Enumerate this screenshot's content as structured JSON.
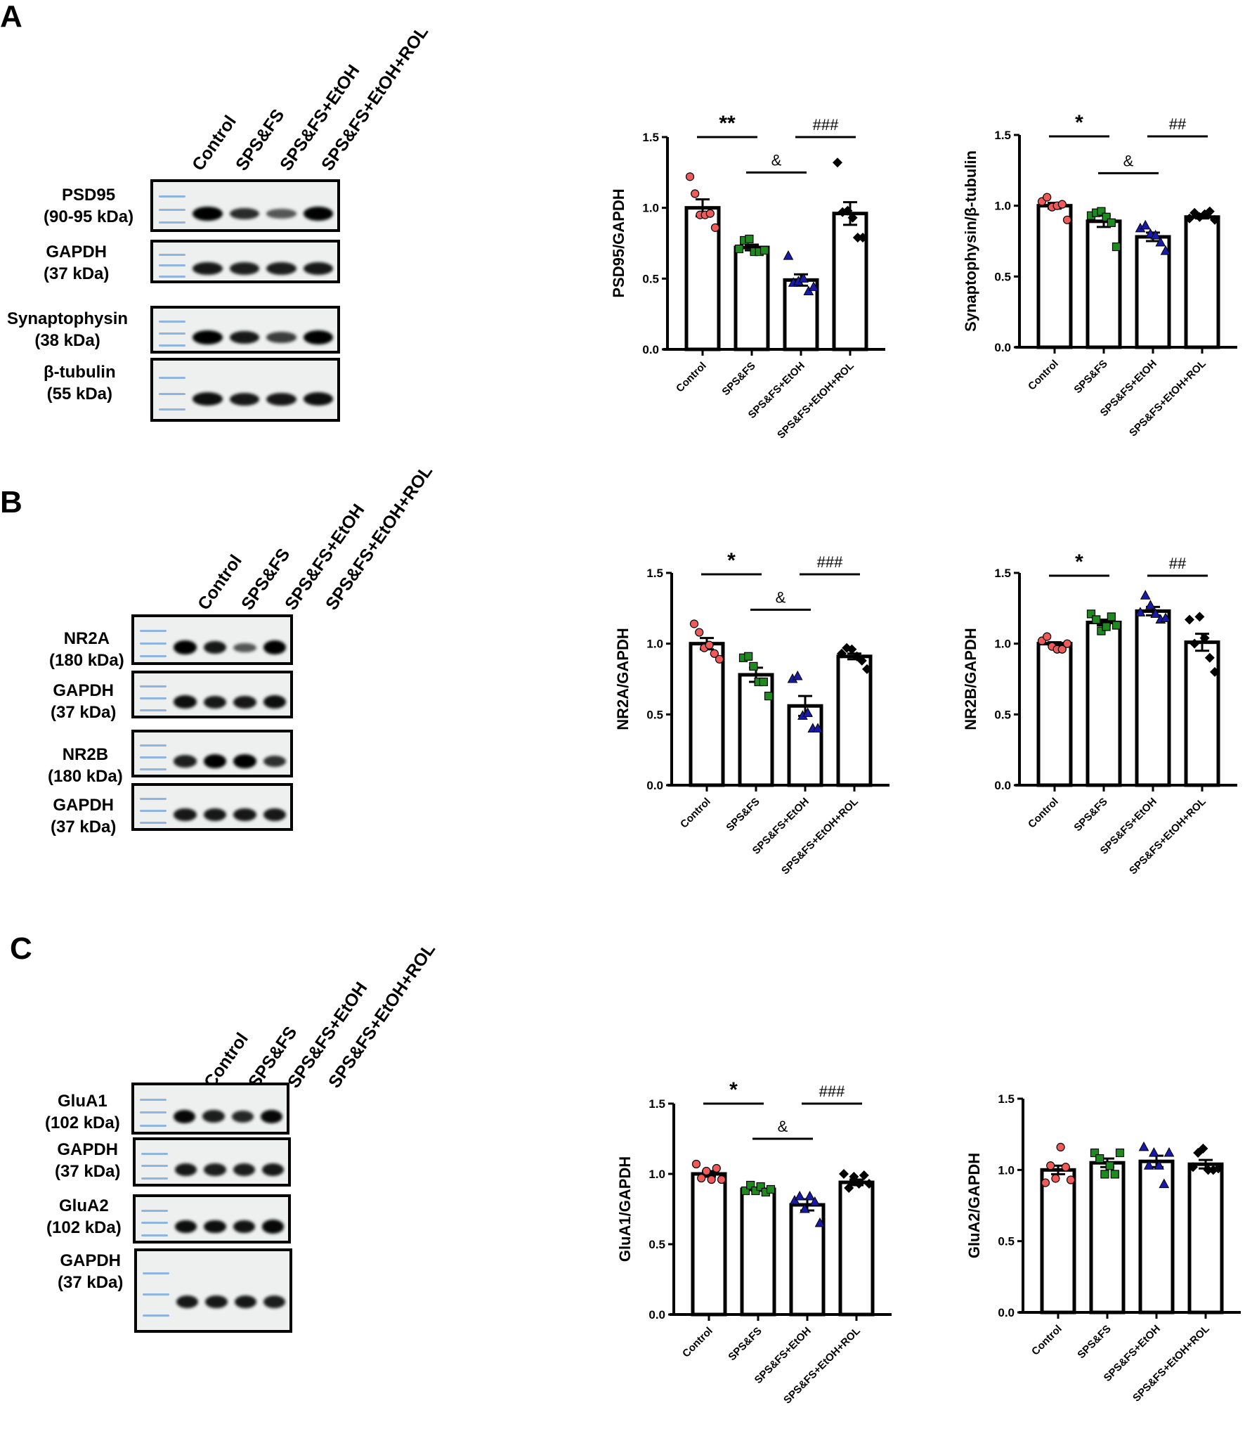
{
  "figure": {
    "lanes": [
      "Control",
      "SPS&FS",
      "SPS&FS+EtOH",
      "SPS&FS+EtOH+ROL"
    ],
    "group_colors": {
      "Control": "#f05a5a",
      "SPS&FS": "#1f8a1f",
      "SPS&FS+EtOH": "#1a1aa8",
      "SPS&FS+EtOH+ROL": "#000000"
    },
    "panels": [
      {
        "letter": "A",
        "blots": [
          {
            "name": "PSD95",
            "kda": "(90-95 kDa)",
            "intensities": [
              1.0,
              0.72,
              0.45,
              0.98
            ]
          },
          {
            "name": "GAPDH",
            "kda": "(37 kDa)",
            "intensities": [
              0.85,
              0.8,
              0.82,
              0.84
            ]
          },
          {
            "name": "Synaptophysin",
            "kda": "(38 kDa)",
            "intensities": [
              1.0,
              0.85,
              0.62,
              1.0
            ]
          },
          {
            "name": "β-tubulin",
            "kda": "(55 kDa)",
            "intensities": [
              0.9,
              0.85,
              0.85,
              0.9
            ]
          }
        ]
      },
      {
        "letter": "B",
        "blots": [
          {
            "name": "NR2A",
            "kda": "(180 kDa)",
            "intensities": [
              1.0,
              0.85,
              0.45,
              1.0
            ]
          },
          {
            "name": "GAPDH",
            "kda": "(37 kDa)",
            "intensities": [
              0.9,
              0.85,
              0.85,
              0.9
            ]
          },
          {
            "name": "NR2B",
            "kda": "(180 kDa)",
            "intensities": [
              0.8,
              1.0,
              1.0,
              0.7
            ]
          },
          {
            "name": "GAPDH",
            "kda": "(37 kDa)",
            "intensities": [
              0.85,
              0.85,
              0.85,
              0.85
            ]
          }
        ]
      },
      {
        "letter": "C",
        "blots": [
          {
            "name": "GluA1",
            "kda": "(102 kDa)",
            "intensities": [
              0.95,
              0.82,
              0.75,
              0.95
            ]
          },
          {
            "name": "GAPDH",
            "kda": "(37 kDa)",
            "intensities": [
              0.85,
              0.82,
              0.82,
              0.85
            ]
          },
          {
            "name": "GluA2",
            "kda": "(102 kDa)",
            "intensities": [
              0.9,
              0.9,
              0.88,
              0.95
            ]
          },
          {
            "name": "GAPDH",
            "kda": "(37 kDa)",
            "intensities": [
              0.85,
              0.85,
              0.85,
              0.82
            ]
          }
        ]
      }
    ]
  },
  "chart_data": [
    {
      "panel": "A",
      "type": "bar",
      "title": "",
      "ylabel": "PSD95/GAPDH",
      "ylim": [
        0,
        1.5
      ],
      "yticks": [
        "0.0",
        "0.5",
        "1.0",
        "1.5"
      ],
      "categories": [
        "Control",
        "SPS&FS",
        "SPS&FS+EtOH",
        "SPS&FS+EtOH+ROL"
      ],
      "values": [
        1.0,
        0.72,
        0.49,
        0.96
      ],
      "sem": [
        0.06,
        0.02,
        0.04,
        0.08
      ],
      "points": [
        [
          1.22,
          1.1,
          0.95,
          0.95,
          0.96,
          0.86
        ],
        [
          0.71,
          0.77,
          0.78,
          0.69,
          0.69,
          0.7
        ],
        [
          0.66,
          0.47,
          0.48,
          0.5,
          0.41,
          0.44
        ],
        [
          1.32,
          0.97,
          0.98,
          0.93,
          0.79,
          0.79
        ]
      ],
      "annotations": [
        {
          "text": "**",
          "from": 0,
          "to": 1,
          "level": 1.5
        },
        {
          "text": "&",
          "from": 1,
          "to": 2,
          "level": 1.25
        },
        {
          "text": "###",
          "from": 2,
          "to": 3,
          "level": 1.5
        }
      ]
    },
    {
      "panel": "A",
      "type": "bar",
      "title": "",
      "ylabel": "Synaptophysin/β-tubulin",
      "ylim": [
        0,
        1.5
      ],
      "yticks": [
        "0.0",
        "0.5",
        "1.0",
        "1.5"
      ],
      "categories": [
        "Control",
        "SPS&FS",
        "SPS&FS+EtOH",
        "SPS&FS+EtOH+ROL"
      ],
      "values": [
        1.0,
        0.89,
        0.78,
        0.92
      ],
      "sem": [
        0.02,
        0.04,
        0.03,
        0.01
      ],
      "points": [
        [
          1.03,
          1.06,
          0.99,
          1.0,
          1.01,
          0.9
        ],
        [
          0.93,
          0.95,
          0.96,
          0.92,
          0.88,
          0.71
        ],
        [
          0.84,
          0.86,
          0.8,
          0.79,
          0.74,
          0.68
        ],
        [
          0.91,
          0.95,
          0.92,
          0.94,
          0.96,
          0.9
        ]
      ],
      "annotations": [
        {
          "text": "*",
          "from": 0,
          "to": 1,
          "level": 1.49
        },
        {
          "text": "&",
          "from": 1,
          "to": 2,
          "level": 1.23
        },
        {
          "text": "##",
          "from": 2,
          "to": 3,
          "level": 1.49
        }
      ]
    },
    {
      "panel": "B",
      "type": "bar",
      "title": "",
      "ylabel": "NR2A/GAPDH",
      "ylim": [
        0,
        1.5
      ],
      "yticks": [
        "0.0",
        "0.5",
        "1.0",
        "1.5"
      ],
      "categories": [
        "Control",
        "SPS&FS",
        "SPS&FS+EtOH",
        "SPS&FS+EtOH+ROL"
      ],
      "values": [
        1.0,
        0.78,
        0.56,
        0.91
      ],
      "sem": [
        0.04,
        0.05,
        0.07,
        0.02
      ],
      "points": [
        [
          1.14,
          1.08,
          0.97,
          0.99,
          0.93,
          0.89
        ],
        [
          0.9,
          0.91,
          0.84,
          0.73,
          0.73,
          0.63
        ],
        [
          0.75,
          0.77,
          0.49,
          0.51,
          0.4,
          0.4
        ],
        [
          0.93,
          0.97,
          0.96,
          0.91,
          0.88,
          0.82
        ]
      ],
      "annotations": [
        {
          "text": "*",
          "from": 0,
          "to": 1,
          "level": 1.49
        },
        {
          "text": "&",
          "from": 1,
          "to": 2,
          "level": 1.24
        },
        {
          "text": "###",
          "from": 2,
          "to": 3,
          "level": 1.49
        }
      ]
    },
    {
      "panel": "B",
      "type": "bar",
      "title": "",
      "ylabel": "NR2B/GAPDH",
      "ylim": [
        0,
        1.5
      ],
      "yticks": [
        "0.0",
        "0.5",
        "1.0",
        "1.5"
      ],
      "categories": [
        "Control",
        "SPS&FS",
        "SPS&FS+EtOH",
        "SPS&FS+EtOH+ROL"
      ],
      "values": [
        1.0,
        1.15,
        1.23,
        1.01
      ],
      "sem": [
        0.01,
        0.02,
        0.03,
        0.06
      ],
      "points": [
        [
          1.02,
          1.05,
          0.98,
          0.96,
          0.96,
          1.0
        ],
        [
          1.21,
          1.17,
          1.09,
          1.12,
          1.19,
          1.13
        ],
        [
          1.22,
          1.34,
          1.27,
          1.21,
          1.17,
          1.18
        ],
        [
          1.17,
          1.0,
          1.19,
          1.04,
          0.9,
          0.8
        ]
      ],
      "annotations": [
        {
          "text": "*",
          "from": 0,
          "to": 1,
          "level": 1.48
        },
        {
          "text": "##",
          "from": 2,
          "to": 3,
          "level": 1.48
        }
      ]
    },
    {
      "panel": "C",
      "type": "bar",
      "title": "",
      "ylabel": "GluA1/GAPDH",
      "ylim": [
        0,
        1.5
      ],
      "yticks": [
        "0.0",
        "0.5",
        "1.0",
        "1.5"
      ],
      "categories": [
        "Control",
        "SPS&FS",
        "SPS&FS+EtOH",
        "SPS&FS+EtOH+ROL"
      ],
      "values": [
        1.0,
        0.89,
        0.78,
        0.94
      ],
      "sem": [
        0.02,
        0.01,
        0.04,
        0.02
      ],
      "points": [
        [
          1.07,
          0.97,
          1.02,
          0.96,
          1.04,
          0.96
        ],
        [
          0.88,
          0.92,
          0.88,
          0.91,
          0.87,
          0.89
        ],
        [
          0.81,
          0.84,
          0.75,
          0.84,
          0.8,
          0.65
        ],
        [
          1.0,
          0.9,
          0.98,
          0.93,
          0.99,
          0.93
        ]
      ],
      "annotations": [
        {
          "text": "*",
          "from": 0,
          "to": 1,
          "level": 1.5
        },
        {
          "text": "&",
          "from": 1,
          "to": 2,
          "level": 1.25
        },
        {
          "text": "###",
          "from": 2,
          "to": 3,
          "level": 1.5
        }
      ]
    },
    {
      "panel": "C",
      "type": "bar",
      "title": "",
      "ylabel": "GluA2/GAPDH",
      "ylim": [
        0,
        1.5
      ],
      "yticks": [
        "0.0",
        "0.5",
        "1.0",
        "1.5"
      ],
      "categories": [
        "Control",
        "SPS&FS",
        "SPS&FS+EtOH",
        "SPS&FS+EtOH+ROL"
      ],
      "values": [
        1.0,
        1.05,
        1.06,
        1.04
      ],
      "sem": [
        0.03,
        0.03,
        0.04,
        0.03
      ],
      "points": [
        [
          0.91,
          1.03,
          0.94,
          1.16,
          1.02,
          0.93
        ],
        [
          1.12,
          1.08,
          0.97,
          1.03,
          0.97,
          1.12
        ],
        [
          1.16,
          1.03,
          1.12,
          1.03,
          0.9,
          1.12
        ],
        [
          1.02,
          1.12,
          1.15,
          1.0,
          1.0,
          1.01
        ]
      ],
      "annotations": []
    }
  ]
}
